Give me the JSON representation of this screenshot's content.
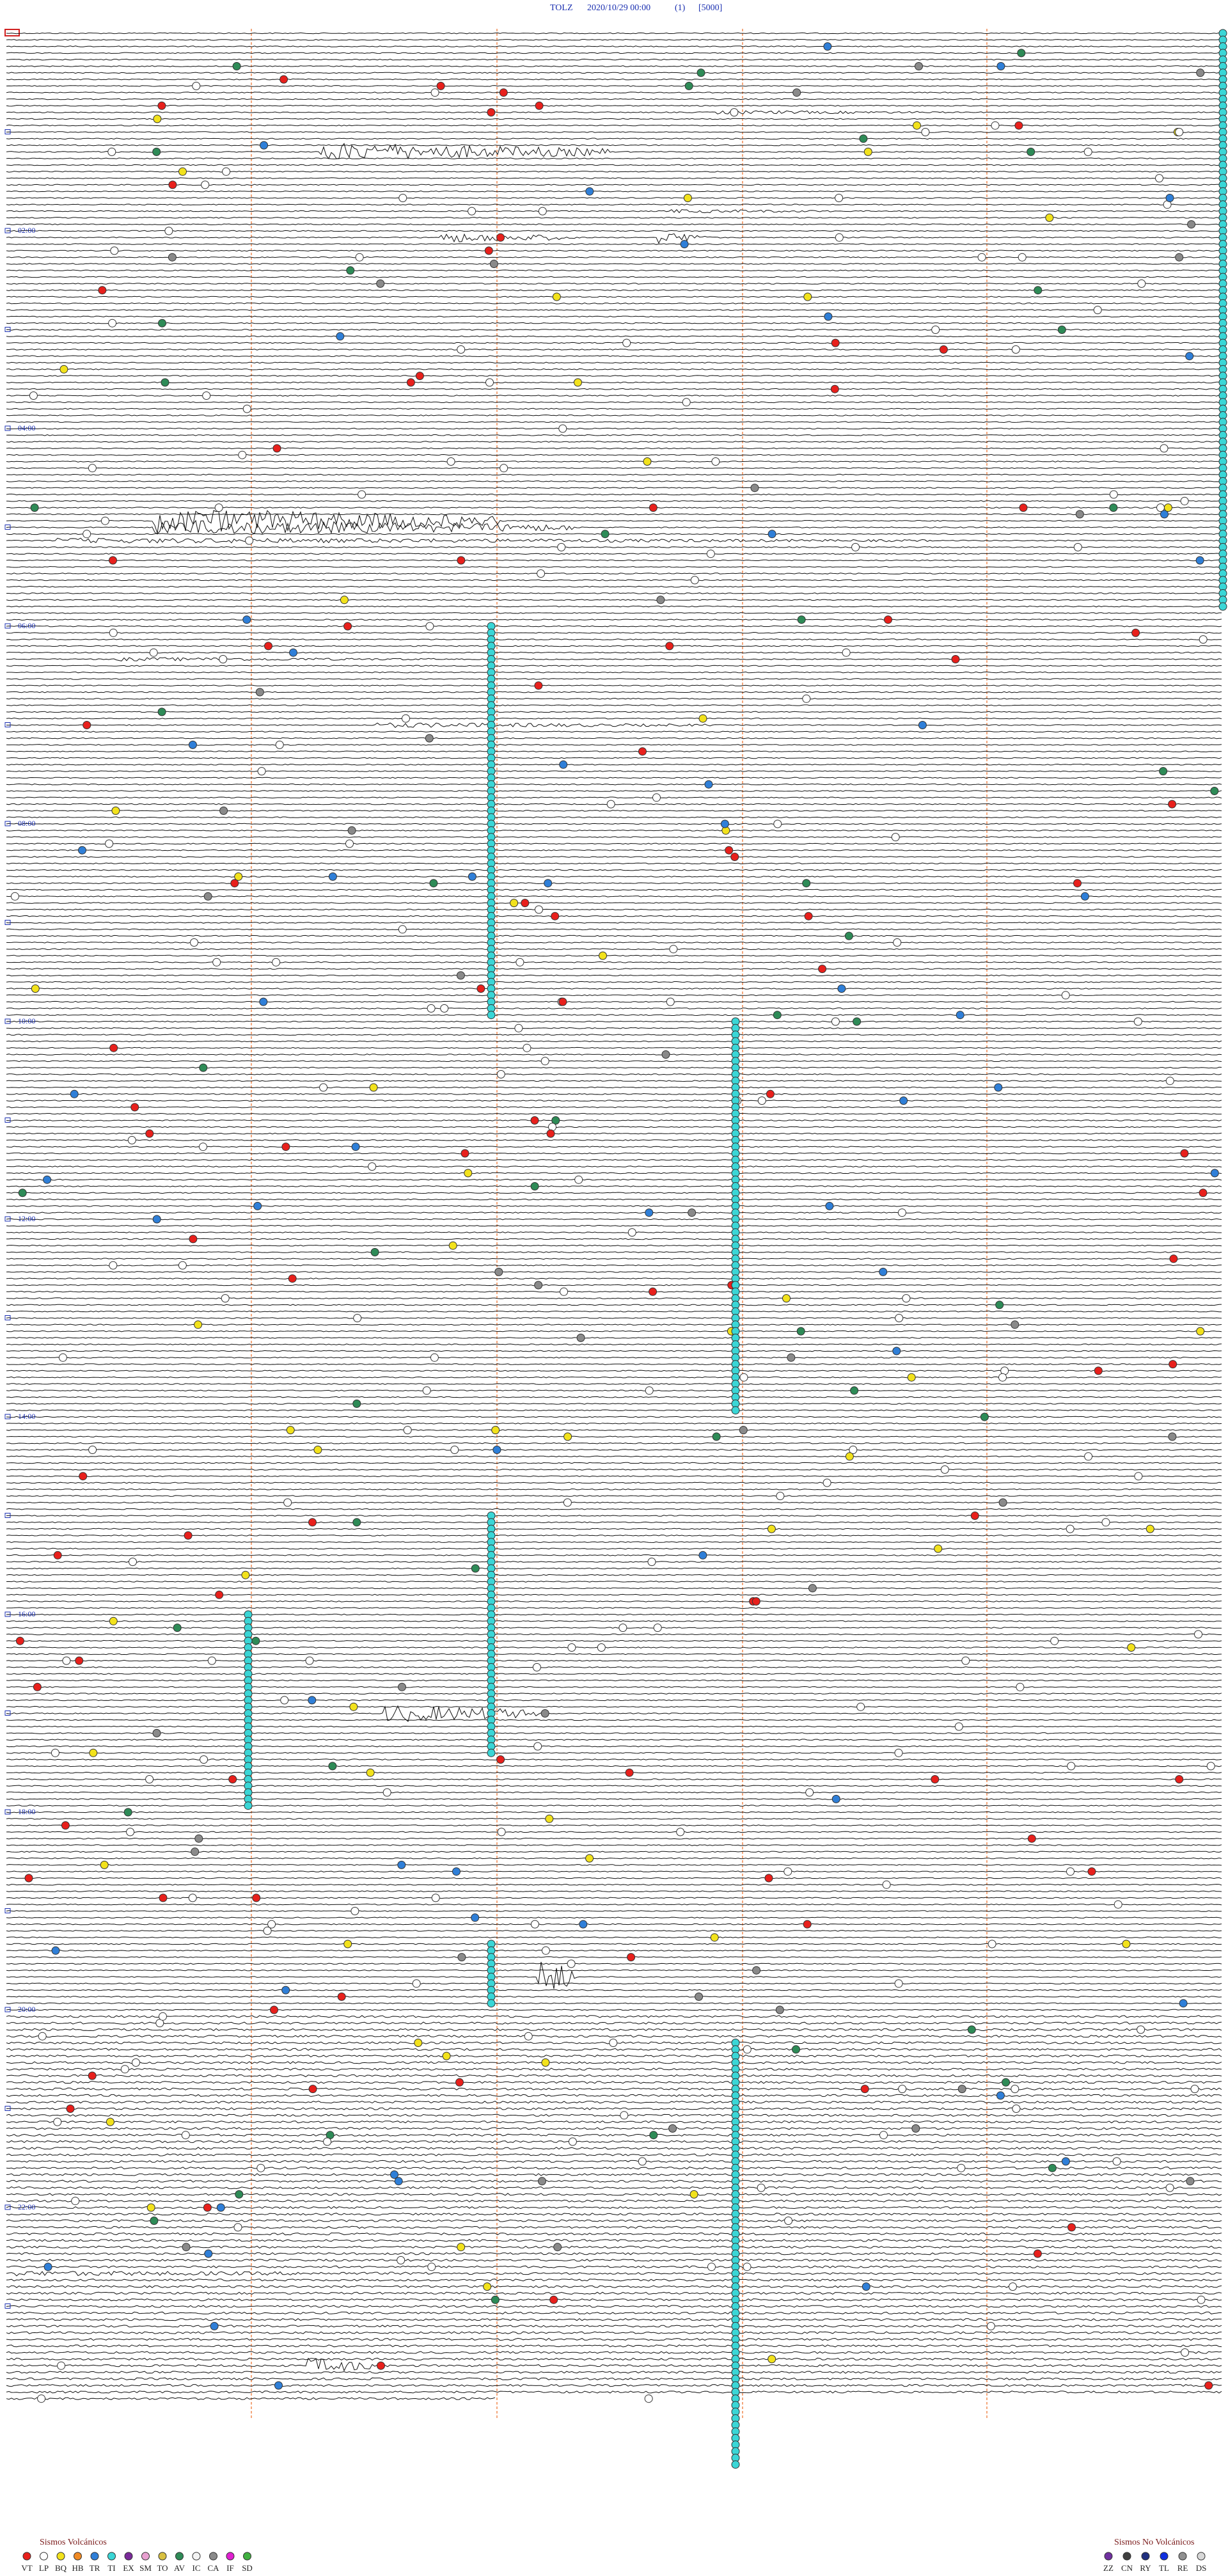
{
  "header": {
    "station": "TOLZ",
    "datetime": "2020/10/29 00:00",
    "channel": "(1)",
    "scale": "[5000]"
  },
  "time_labels": [
    "02:00",
    "04:00",
    "06:00",
    "08:00",
    "10:00",
    "12:00",
    "14:00",
    "16:00",
    "18:00",
    "20:00",
    "22:00"
  ],
  "legend_volcanic": {
    "title": "Sismos Volcánicos",
    "items": [
      {
        "label": "VT",
        "color": "#e8201c"
      },
      {
        "label": "LP",
        "color": "#ffffff"
      },
      {
        "label": "BQ",
        "color": "#f2e21c"
      },
      {
        "label": "HB",
        "color": "#f08a24"
      },
      {
        "label": "TR",
        "color": "#2f7fd8"
      },
      {
        "label": "TI",
        "color": "#3ad6d6"
      },
      {
        "label": "EX",
        "color": "#7a2a9a"
      },
      {
        "label": "SM",
        "color": "#e8a0d0"
      },
      {
        "label": "TO",
        "color": "#d8c040"
      },
      {
        "label": "AV",
        "color": "#2e8b57"
      },
      {
        "label": "IC",
        "color": "#f4f4f4"
      },
      {
        "label": "CA",
        "color": "#8a8a8a"
      },
      {
        "label": "IF",
        "color": "#e020d0"
      },
      {
        "label": "SD",
        "color": "#40b040"
      }
    ]
  },
  "legend_nonvolcanic": {
    "title": "Sismos No Volcánicos",
    "items": [
      {
        "label": "ZZ",
        "color": "#7030a0"
      },
      {
        "label": "CN",
        "color": "#404040"
      },
      {
        "label": "RY",
        "color": "#203080"
      },
      {
        "label": "TL",
        "color": "#1030e0"
      },
      {
        "label": "RE",
        "color": "#909090"
      },
      {
        "label": "DS",
        "color": "#d8d8d8"
      }
    ]
  }
}
